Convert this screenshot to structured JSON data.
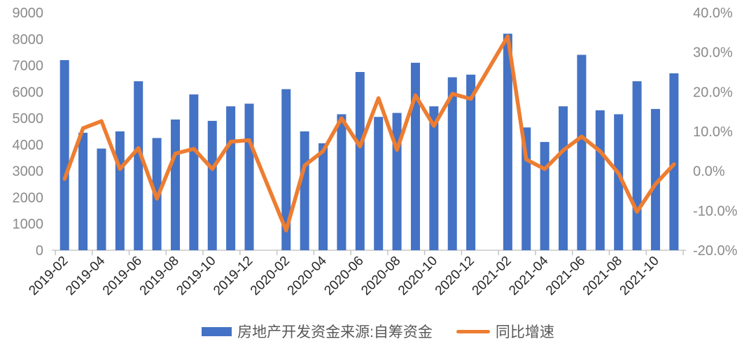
{
  "chart_data": {
    "type": "combo-bar-line",
    "title": "",
    "categories": [
      "2019-02",
      "2019-03",
      "2019-04",
      "2019-05",
      "2019-06",
      "2019-07",
      "2019-08",
      "2019-09",
      "2019-10",
      "2019-11",
      "2019-12",
      "2020-01",
      "2020-02",
      "2020-03",
      "2020-04",
      "2020-05",
      "2020-06",
      "2020-07",
      "2020-08",
      "2020-09",
      "2020-10",
      "2020-11",
      "2020-12",
      "2021-01",
      "2021-02",
      "2021-03",
      "2021-04",
      "2021-05",
      "2021-06",
      "2021-07",
      "2021-08",
      "2021-09",
      "2021-10",
      "2021-11"
    ],
    "series": [
      {
        "name": "房地产开发资金来源:自筹资金",
        "type": "bar",
        "axis": "left",
        "color": "#4472C4",
        "values": [
          7200,
          4450,
          3850,
          4500,
          6400,
          4250,
          4950,
          5900,
          4900,
          5450,
          5550,
          null,
          6100,
          4500,
          4050,
          5150,
          6750,
          5050,
          5200,
          7100,
          5450,
          6550,
          6650,
          null,
          8200,
          4650,
          4100,
          5450,
          7400,
          5300,
          5150,
          6400,
          5350,
          6700
        ]
      },
      {
        "name": "同比增速",
        "type": "line",
        "axis": "right",
        "color": "#ED7D31",
        "values": [
          -2.0,
          10.8,
          12.6,
          0.5,
          5.8,
          -7.0,
          4.4,
          5.6,
          0.5,
          7.4,
          7.8,
          null,
          -15.0,
          1.4,
          5.0,
          13.3,
          6.2,
          18.4,
          5.3,
          19.1,
          11.4,
          19.5,
          18.2,
          null,
          34.0,
          2.9,
          0.5,
          5.2,
          8.7,
          5.0,
          -0.6,
          -10.3,
          -3.3,
          1.7
        ]
      }
    ],
    "left_axis": {
      "min": 0,
      "max": 9000,
      "step": 1000,
      "labels_top_to_bottom": [
        "9000",
        "8000",
        "7000",
        "6000",
        "5000",
        "4000",
        "3000",
        "2000",
        "1000",
        "0"
      ]
    },
    "right_axis": {
      "min": -20,
      "max": 40,
      "step": 10,
      "labels_top_to_bottom": [
        "40.0%",
        "30.0%",
        "20.0%",
        "10.0%",
        "0.0%",
        "-10.0%",
        "-20.0%"
      ]
    },
    "x_axis": {
      "tick_labels": [
        "2019-02",
        "2019-04",
        "2019-06",
        "2019-08",
        "2019-10",
        "2019-12",
        "2020-02",
        "2020-04",
        "2020-06",
        "2020-08",
        "2020-10",
        "2020-12",
        "2021-02",
        "2021-04",
        "2021-06",
        "2021-08",
        "2021-10"
      ],
      "label_every_n_slots": 2,
      "label_rotation_deg": 45
    },
    "legend_position": "bottom",
    "grid": "off"
  },
  "legend": {
    "items": [
      {
        "label": "房地产开发资金来源:自筹资金",
        "color": "#4472C4",
        "type": "bar"
      },
      {
        "label": "同比增速",
        "color": "#ED7D31",
        "type": "line"
      }
    ]
  },
  "colors": {
    "bar": "#4472C4",
    "line": "#ED7D31",
    "y_axis_label": "#8a8a8a",
    "x_axis_label": "#262626",
    "legend_text": "#595959",
    "axis_line": "#d6d6d6",
    "tick_mark": "#c4c4c4",
    "background": "#ffffff"
  }
}
